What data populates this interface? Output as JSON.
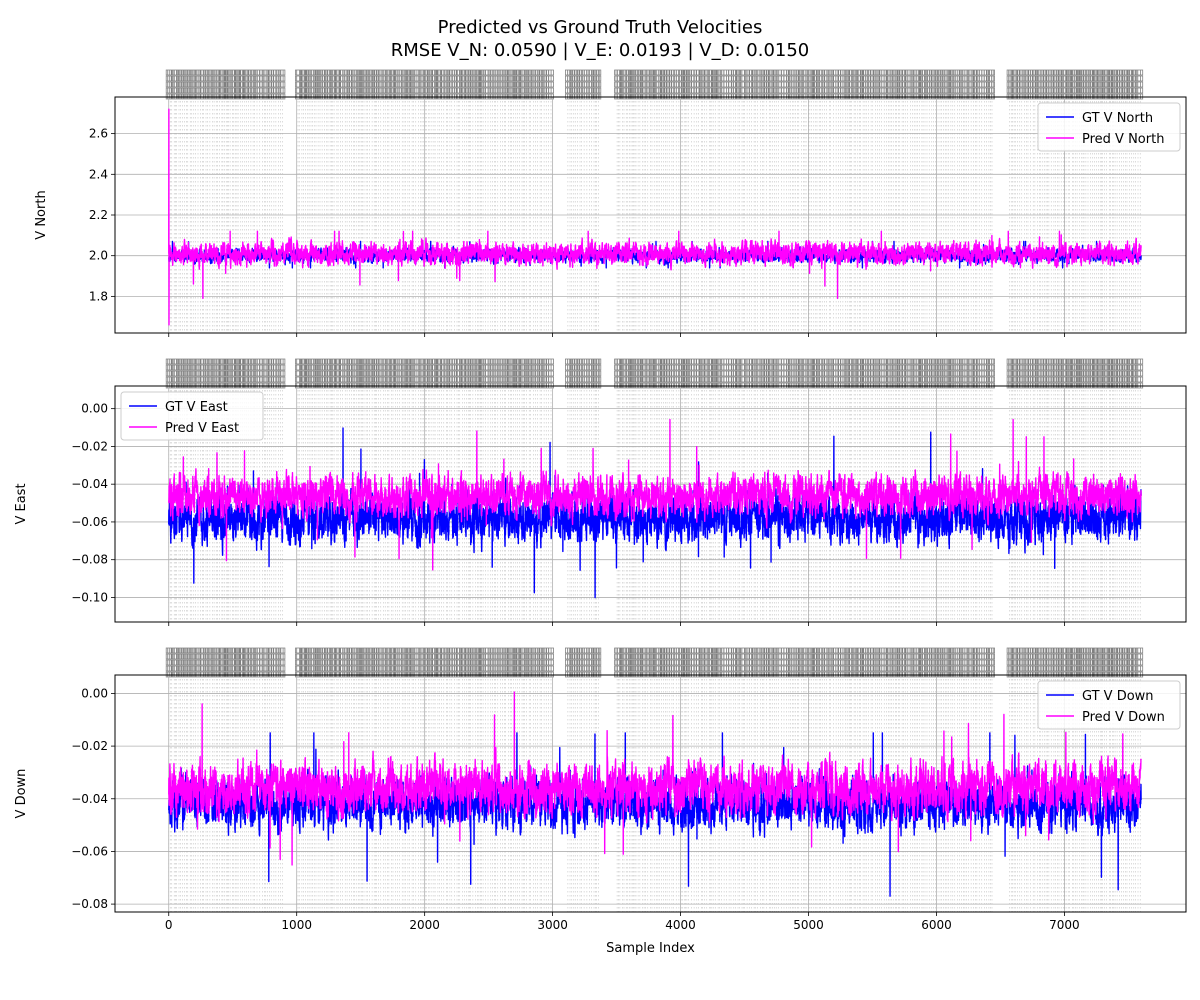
{
  "figure": {
    "title": "Predicted vs Ground Truth Velocities",
    "subtitle": "RMSE V_N: 0.0590 | V_E: 0.0193 | V_D: 0.0150"
  },
  "colors": {
    "gt": "#0000ff",
    "pred": "#ff00ff",
    "grid": "#b0b0b0",
    "markers": "#808080"
  },
  "chart_data": [
    {
      "type": "line",
      "ylabel": "V North",
      "xlabel": "",
      "xlim": [
        -420,
        7950
      ],
      "ylim": [
        1.62,
        2.78
      ],
      "x_ticks": [
        0,
        1000,
        2000,
        3000,
        4000,
        5000,
        6000,
        7000
      ],
      "y_ticks": [
        "1.8",
        "2.0",
        "2.2",
        "2.4",
        "2.6"
      ],
      "grid": true,
      "legend_position": "top-right",
      "n_samples": 7600,
      "series": [
        {
          "name": "GT V North",
          "mean": 2.0,
          "spread": 0.03,
          "range": [
            1.94,
            2.07
          ]
        },
        {
          "name": "Pred V North",
          "mean": 2.01,
          "spread": 0.05,
          "range": [
            1.79,
            2.12
          ],
          "initial_spike": [
            2.72,
            1.66
          ]
        }
      ]
    },
    {
      "type": "line",
      "ylabel": "V East",
      "xlabel": "",
      "xlim": [
        -420,
        7950
      ],
      "ylim": [
        -0.113,
        0.012
      ],
      "x_ticks": [
        0,
        1000,
        2000,
        3000,
        4000,
        5000,
        6000,
        7000
      ],
      "y_ticks": [
        "−0.10",
        "−0.08",
        "−0.06",
        "−0.04",
        "−0.02",
        "0.00"
      ],
      "grid": true,
      "legend_position": "top-left",
      "n_samples": 7600,
      "series": [
        {
          "name": "GT V East",
          "mean": -0.058,
          "spread": 0.012,
          "range": [
            -0.107,
            0.0
          ]
        },
        {
          "name": "Pred V East",
          "mean": -0.046,
          "spread": 0.01,
          "range": [
            -0.107,
            0.008
          ]
        }
      ]
    },
    {
      "type": "line",
      "ylabel": "V Down",
      "xlabel": "Sample Index",
      "xlim": [
        -420,
        7950
      ],
      "ylim": [
        -0.083,
        0.007
      ],
      "x_ticks": [
        0,
        1000,
        2000,
        3000,
        4000,
        5000,
        6000,
        7000
      ],
      "y_ticks": [
        "−0.08",
        "−0.06",
        "−0.04",
        "−0.02",
        "0.00"
      ],
      "grid": true,
      "legend_position": "top-right",
      "n_samples": 7600,
      "series": [
        {
          "name": "GT V Down",
          "mean": -0.042,
          "spread": 0.009,
          "range": [
            -0.077,
            -0.015
          ]
        },
        {
          "name": "Pred V Down",
          "mean": -0.036,
          "spread": 0.009,
          "range": [
            -0.078,
            0.003
          ]
        }
      ]
    }
  ]
}
